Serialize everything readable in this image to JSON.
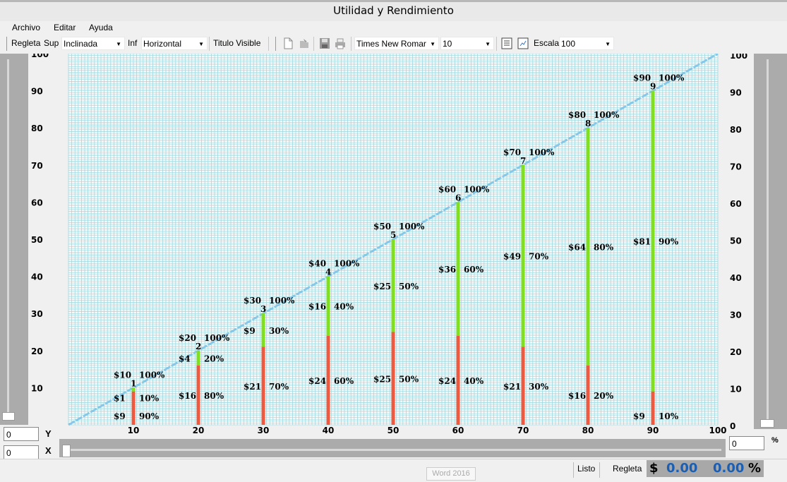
{
  "window": {
    "title": "Utilidad y Rendimiento"
  },
  "menu": [
    "Archivo",
    "Editar",
    "Ayuda"
  ],
  "toolbar": {
    "regleta_label": "Regleta",
    "sup_label": "Sup",
    "sup_value": "Inclinada",
    "inf_label": "Inf",
    "inf_value": "Horizontal",
    "titulo_visible": "Titulo Visible",
    "font_name": "Times New Romar",
    "font_size": "10",
    "escala_label": "Escala",
    "escala_value": "100"
  },
  "left_axis_labels": [
    "100",
    "90",
    "80",
    "70",
    "60",
    "50",
    "40",
    "30",
    "20",
    "10"
  ],
  "right_axis_labels": [
    "100",
    "90",
    "80",
    "70",
    "60",
    "50",
    "40",
    "30",
    "20",
    "10",
    "0"
  ],
  "x_axis_labels": [
    "10",
    "20",
    "30",
    "40",
    "50",
    "60",
    "70",
    "80",
    "90",
    "100"
  ],
  "inputs": {
    "y_label": "Y",
    "y_value": "0",
    "x_label": "X",
    "x_value": "0",
    "pct_value": "0",
    "pct_label": "%"
  },
  "status": {
    "listo": "Listo",
    "regleta": "Regleta",
    "currency_symbol": "$",
    "amount": "0.00",
    "percent": "0.00",
    "percent_symbol": "%",
    "tooltip": "Word 2016"
  },
  "colors": {
    "grid": "#9fd8df",
    "diagonal": "#87c8e8",
    "red": "#ee5a40",
    "green": "#80e020",
    "scroll": "#ababab"
  },
  "chart_data": {
    "type": "bar",
    "xlim": [
      0,
      100
    ],
    "ylim": [
      0,
      100
    ],
    "diagonal_line": [
      [
        0,
        0
      ],
      [
        100,
        100
      ]
    ],
    "bars": [
      {
        "index": "1",
        "x": 10,
        "total": 10,
        "red": 9,
        "green": 1,
        "top_money": "$10",
        "top_pct": "100%",
        "green_money": "$1",
        "green_pct": "10%",
        "red_money": "$9",
        "red_pct": "90%"
      },
      {
        "index": "2",
        "x": 20,
        "total": 20,
        "red": 16,
        "green": 4,
        "top_money": "$20",
        "top_pct": "100%",
        "green_money": "$4",
        "green_pct": "20%",
        "red_money": "$16",
        "red_pct": "80%"
      },
      {
        "index": "3",
        "x": 30,
        "total": 30,
        "red": 21,
        "green": 9,
        "top_money": "$30",
        "top_pct": "100%",
        "green_money": "$9",
        "green_pct": "30%",
        "red_money": "$21",
        "red_pct": "70%"
      },
      {
        "index": "4",
        "x": 40,
        "total": 40,
        "red": 24,
        "green": 16,
        "top_money": "$40",
        "top_pct": "100%",
        "green_money": "$16",
        "green_pct": "40%",
        "red_money": "$24",
        "red_pct": "60%"
      },
      {
        "index": "5",
        "x": 50,
        "total": 50,
        "red": 25,
        "green": 25,
        "top_money": "$50",
        "top_pct": "100%",
        "green_money": "$25",
        "green_pct": "50%",
        "red_money": "$25",
        "red_pct": "50%"
      },
      {
        "index": "6",
        "x": 60,
        "total": 60,
        "red": 24,
        "green": 36,
        "top_money": "$60",
        "top_pct": "100%",
        "green_money": "$36",
        "green_pct": "60%",
        "red_money": "$24",
        "red_pct": "40%"
      },
      {
        "index": "7",
        "x": 70,
        "total": 70,
        "red": 21,
        "green": 49,
        "top_money": "$70",
        "top_pct": "100%",
        "green_money": "$49",
        "green_pct": "70%",
        "red_money": "$21",
        "red_pct": "30%"
      },
      {
        "index": "8",
        "x": 80,
        "total": 80,
        "red": 16,
        "green": 64,
        "top_money": "$80",
        "top_pct": "100%",
        "green_money": "$64",
        "green_pct": "80%",
        "red_money": "$16",
        "red_pct": "20%"
      },
      {
        "index": "9",
        "x": 90,
        "total": 90,
        "red": 9,
        "green": 81,
        "top_money": "$90",
        "top_pct": "100%",
        "green_money": "$81",
        "green_pct": "90%",
        "red_money": "$9",
        "red_pct": "10%"
      }
    ]
  }
}
